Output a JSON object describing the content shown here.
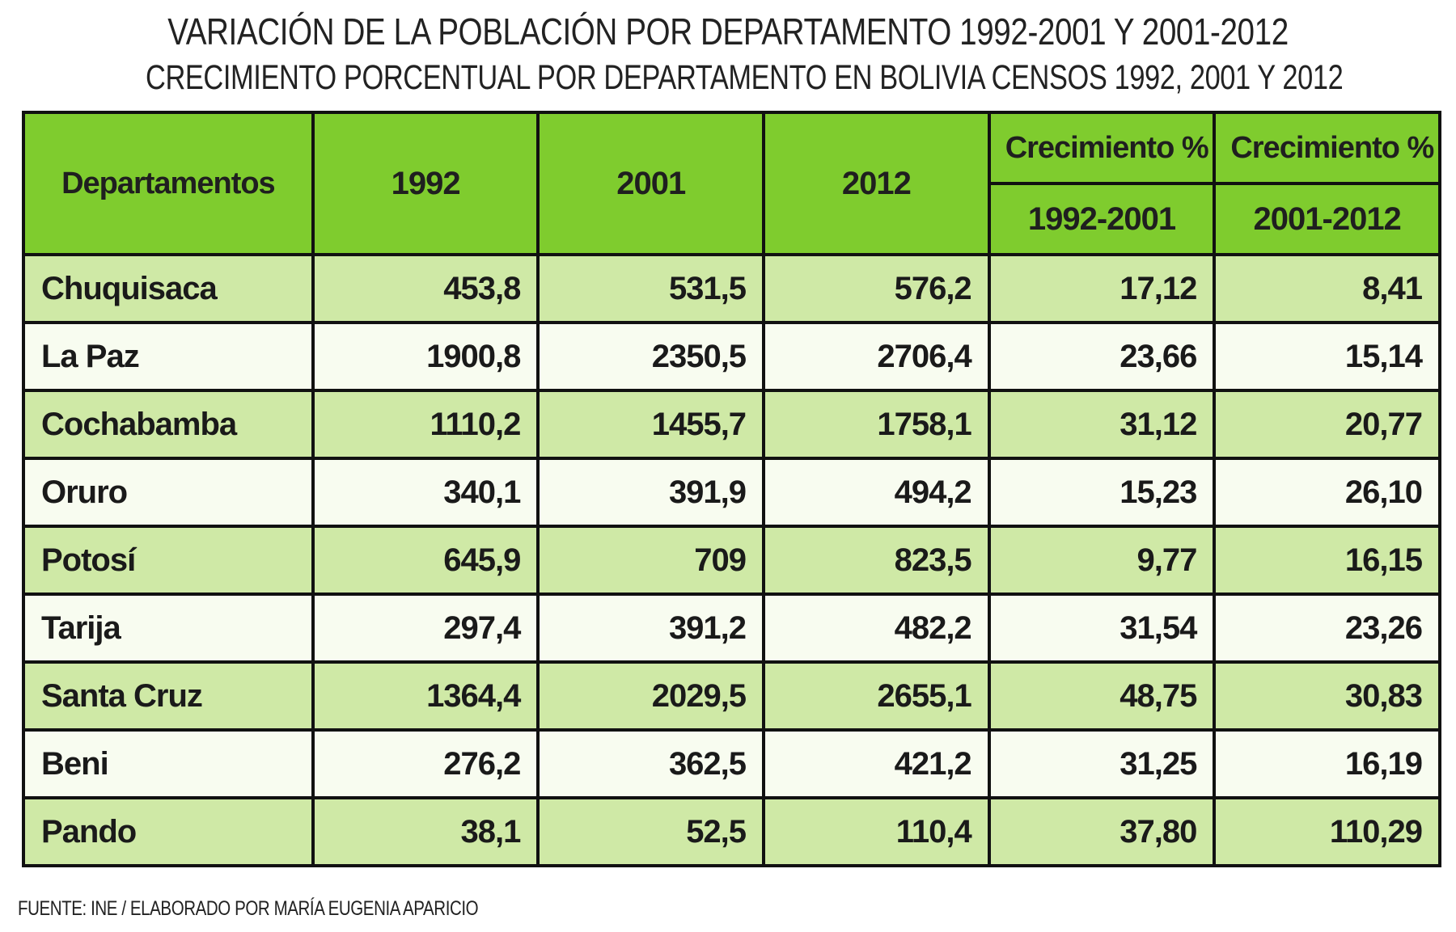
{
  "title": "VARIACIÓN DE LA POBLACIÓN POR DEPARTAMENTO 1992-2001 Y 2001-2012",
  "subtitle": "CRECIMIENTO PORCENTUAL POR DEPARTAMENTO EN BOLIVIA CENSOS 1992, 2001 Y 2012",
  "source": "FUENTE: INE / ELABORADO POR MARÍA EUGENIA APARICIO",
  "colors": {
    "header_green": "#7fcc2e",
    "row_light_green": "#cfe9a6",
    "row_cream": "#f8fcf0",
    "border": "#111111"
  },
  "chart_data": {
    "type": "table",
    "title": "VARIACIÓN DE LA POBLACIÓN POR DEPARTAMENTO 1992-2001 Y 2001-2012",
    "subtitle": "CRECIMIENTO PORCENTUAL POR DEPARTAMENTO EN BOLIVIA CENSOS 1992, 2001 Y 2012",
    "header": {
      "departamentos": "Departamentos",
      "y1992": "1992",
      "y2001": "2001",
      "y2012": "2012",
      "growth_label_a": "Crecimiento %",
      "growth_label_b": "Crecimiento %",
      "growth_period_a": "1992-2001",
      "growth_period_b": "2001-2012"
    },
    "rows": [
      [
        "Chuquisaca",
        "453,8",
        "531,5",
        "576,2",
        "17,12",
        "8,41"
      ],
      [
        "La Paz",
        "1900,8",
        "2350,5",
        "2706,4",
        "23,66",
        "15,14"
      ],
      [
        "Cochabamba",
        "1110,2",
        "1455,7",
        "1758,1",
        "31,12",
        "20,77"
      ],
      [
        "Oruro",
        "340,1",
        "391,9",
        "494,2",
        "15,23",
        "26,10"
      ],
      [
        "Potosí",
        "645,9",
        "709",
        "823,5",
        "9,77",
        "16,15"
      ],
      [
        "Tarija",
        "297,4",
        "391,2",
        "482,2",
        "31,54",
        "23,26"
      ],
      [
        "Santa Cruz",
        "1364,4",
        "2029,5",
        "2655,1",
        "48,75",
        "30,83"
      ],
      [
        "Beni",
        "276,2",
        "362,5",
        "421,2",
        "31,25",
        "16,19"
      ],
      [
        "Pando",
        "38,1",
        "52,5",
        "110,4",
        "37,80",
        "110,29"
      ]
    ]
  }
}
